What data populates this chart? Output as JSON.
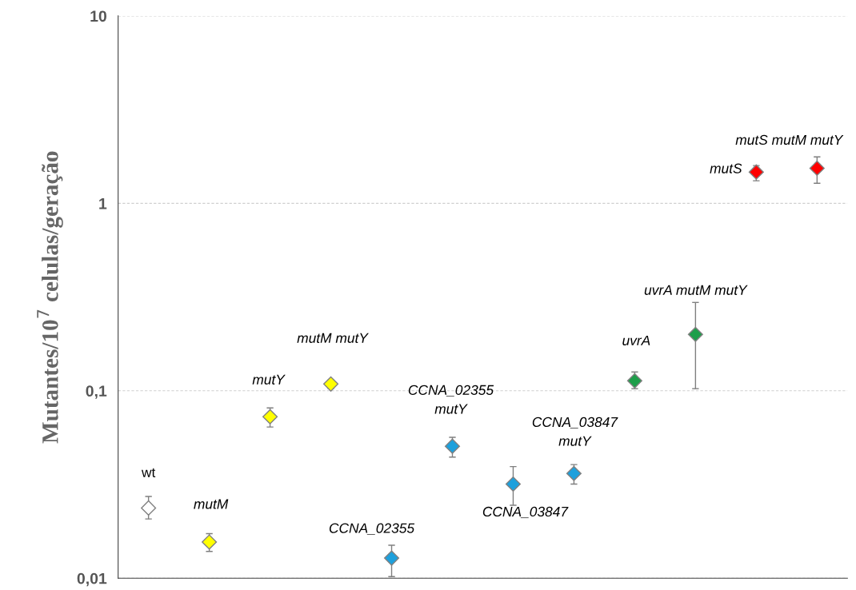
{
  "chart_data": {
    "type": "scatter",
    "ylabel": "Mutantes/10$^{7}$ celulas/geração",
    "categories": [
      null,
      null,
      null,
      null,
      null,
      null,
      null,
      null,
      null,
      null,
      null,
      null
    ],
    "series": [
      {
        "name": "wt",
        "color": "#ffffff",
        "values": [
          0.0237,
          null,
          null,
          null,
          null,
          null,
          null,
          null,
          null,
          null,
          null,
          null
        ],
        "errors": [
          [
            0.0207,
            0.0273
          ],
          null,
          null,
          null,
          null,
          null,
          null,
          null,
          null,
          null,
          null,
          null
        ]
      },
      {
        "name": "mutM",
        "color": "#ffff00",
        "values": [
          null,
          0.0156,
          null,
          null,
          null,
          null,
          null,
          null,
          null,
          null,
          null,
          null
        ],
        "errors": [
          null,
          [
            0.0139,
            0.0173
          ],
          null,
          null,
          null,
          null,
          null,
          null,
          null,
          null,
          null,
          null
        ]
      },
      {
        "name": "mutY",
        "color": "#ffff00",
        "values": [
          null,
          null,
          0.0727,
          null,
          null,
          null,
          null,
          null,
          null,
          null,
          null,
          null
        ],
        "errors": [
          null,
          null,
          [
            0.0641,
            0.081
          ],
          null,
          null,
          null,
          null,
          null,
          null,
          null,
          null,
          null
        ]
      },
      {
        "name": "mutM mutY",
        "color": "#ffff00",
        "values": [
          null,
          null,
          null,
          0.1087,
          null,
          null,
          null,
          null,
          null,
          null,
          null,
          null
        ],
        "errors": [
          null,
          null,
          null,
          [
            0.103,
            0.114
          ],
          null,
          null,
          null,
          null,
          null,
          null,
          null,
          null
        ]
      },
      {
        "name": "CCNA_02355",
        "color": "#1ea0dc",
        "values": [
          null,
          null,
          null,
          null,
          0.0128,
          null,
          null,
          null,
          null,
          null,
          null,
          null
        ],
        "errors": [
          null,
          null,
          null,
          null,
          [
            0.0102,
            0.015
          ],
          null,
          null,
          null,
          null,
          null,
          null,
          null
        ]
      },
      {
        "name": "CCNA_02355\nmutY",
        "color": "#1ea0dc",
        "values": [
          null,
          null,
          null,
          null,
          null,
          0.0506,
          null,
          null,
          null,
          null,
          null,
          null
        ],
        "errors": [
          null,
          null,
          null,
          null,
          null,
          [
            0.0443,
            0.0565
          ],
          null,
          null,
          null,
          null,
          null,
          null
        ]
      },
      {
        "name": "CCNA_03847",
        "color": "#1ea0dc",
        "values": [
          null,
          null,
          null,
          null,
          null,
          null,
          0.0318,
          null,
          null,
          null,
          null,
          null
        ],
        "errors": [
          null,
          null,
          null,
          null,
          null,
          null,
          [
            0.0245,
            0.0394
          ],
          null,
          null,
          null,
          null,
          null
        ]
      },
      {
        "name": "CCNA_03847\nmutY",
        "color": "#1ea0dc",
        "values": [
          null,
          null,
          null,
          null,
          null,
          null,
          null,
          0.0362,
          null,
          null,
          null,
          null
        ],
        "errors": [
          null,
          null,
          null,
          null,
          null,
          null,
          null,
          [
            0.0318,
            0.0404
          ],
          null,
          null,
          null,
          null
        ]
      },
      {
        "name": "uvrA",
        "color": "#1e9e4a",
        "values": [
          null,
          null,
          null,
          null,
          null,
          null,
          null,
          null,
          0.113,
          null,
          null,
          null
        ],
        "errors": [
          null,
          null,
          null,
          null,
          null,
          null,
          null,
          null,
          [
            0.1026,
            0.126
          ],
          null,
          null,
          null
        ]
      },
      {
        "name": "uvrA mutM mutY",
        "color": "#1e9e4a",
        "values": [
          null,
          null,
          null,
          null,
          null,
          null,
          null,
          null,
          null,
          0.2,
          null,
          null
        ],
        "errors": [
          null,
          null,
          null,
          null,
          null,
          null,
          null,
          null,
          null,
          [
            0.1026,
            0.296
          ],
          null,
          null
        ]
      },
      {
        "name": "mutS",
        "color": "#ff0000",
        "values": [
          null,
          null,
          null,
          null,
          null,
          null,
          null,
          null,
          null,
          null,
          1.47,
          null
        ],
        "errors": [
          null,
          null,
          null,
          null,
          null,
          null,
          null,
          null,
          null,
          null,
          [
            1.32,
            1.59
          ],
          null
        ]
      },
      {
        "name": "mutS mutM mutY",
        "color": "#ff0000",
        "values": [
          null,
          null,
          null,
          null,
          null,
          null,
          null,
          null,
          null,
          null,
          null,
          1.54
        ],
        "errors": [
          null,
          null,
          null,
          null,
          null,
          null,
          null,
          null,
          null,
          null,
          null,
          [
            1.28,
            1.77
          ]
        ]
      }
    ],
    "log": "y",
    "ylim": [
      0.01,
      10
    ],
    "yticks": [
      {
        "value": 0.01,
        "label": "0,01"
      },
      {
        "value": 0.1,
        "label": "0,1"
      },
      {
        "value": 1,
        "label": "1"
      },
      {
        "value": 10,
        "label": "10"
      }
    ],
    "grid": "y",
    "marker": "diamond",
    "tick_labels": "y"
  }
}
